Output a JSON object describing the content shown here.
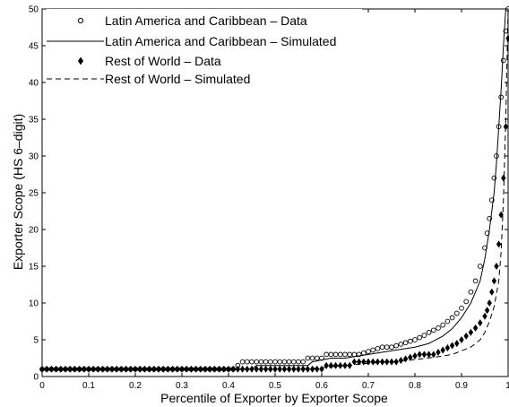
{
  "chart_data": {
    "type": "scatter",
    "xlabel": "Percentile of Exporter by Exporter Scope",
    "ylabel": "Exporter Scope (HS 6–digit)",
    "xlim": [
      0,
      1
    ],
    "ylim": [
      0,
      50
    ],
    "xticks": [
      "0",
      "0.1",
      "0.2",
      "0.3",
      "0.4",
      "0.5",
      "0.6",
      "0.7",
      "0.8",
      "0.9",
      "1"
    ],
    "yticks": [
      "0",
      "5",
      "10",
      "15",
      "20",
      "25",
      "30",
      "35",
      "40",
      "45",
      "50"
    ],
    "grid": false,
    "legend_position": "top-left",
    "series": [
      {
        "name": "Latin America and Caribbean – Data",
        "marker": "open-circle",
        "color": "#000000",
        "x": [
          0.0,
          0.01,
          0.02,
          0.03,
          0.04,
          0.05,
          0.06,
          0.07,
          0.08,
          0.09,
          0.1,
          0.11,
          0.12,
          0.13,
          0.14,
          0.15,
          0.16,
          0.17,
          0.18,
          0.19,
          0.2,
          0.21,
          0.22,
          0.23,
          0.24,
          0.25,
          0.26,
          0.27,
          0.28,
          0.29,
          0.3,
          0.31,
          0.32,
          0.33,
          0.34,
          0.35,
          0.36,
          0.37,
          0.38,
          0.39,
          0.4,
          0.41,
          0.42,
          0.43,
          0.44,
          0.45,
          0.46,
          0.47,
          0.48,
          0.49,
          0.5,
          0.51,
          0.52,
          0.53,
          0.54,
          0.55,
          0.56,
          0.57,
          0.58,
          0.59,
          0.6,
          0.61,
          0.62,
          0.63,
          0.64,
          0.65,
          0.66,
          0.67,
          0.68,
          0.69,
          0.7,
          0.71,
          0.72,
          0.73,
          0.74,
          0.75,
          0.76,
          0.77,
          0.78,
          0.79,
          0.8,
          0.81,
          0.82,
          0.83,
          0.84,
          0.85,
          0.86,
          0.87,
          0.88,
          0.89,
          0.9,
          0.91,
          0.92,
          0.93,
          0.94,
          0.95,
          0.955,
          0.96,
          0.965,
          0.97,
          0.975,
          0.98,
          0.985,
          0.99,
          0.995,
          1.0
        ],
        "y": [
          1,
          1,
          1,
          1,
          1,
          1,
          1,
          1,
          1,
          1,
          1,
          1,
          1,
          1,
          1,
          1,
          1,
          1,
          1,
          1,
          1,
          1,
          1,
          1,
          1,
          1,
          1,
          1,
          1,
          1,
          1,
          1,
          1,
          1,
          1,
          1,
          1,
          1,
          1,
          1,
          1,
          1,
          1.5,
          2,
          2,
          2,
          2,
          2,
          2,
          2,
          2,
          2,
          2,
          2,
          2,
          2,
          2,
          2.5,
          2.5,
          2.5,
          2.5,
          3,
          3,
          3,
          3,
          3,
          3,
          3,
          3,
          3.2,
          3.4,
          3.6,
          3.8,
          4,
          4,
          4,
          4.2,
          4.4,
          4.6,
          4.8,
          5,
          5.3,
          5.6,
          6,
          6.3,
          6.6,
          7,
          7.5,
          8,
          8.6,
          9.3,
          10.2,
          11.5,
          13,
          15,
          17.5,
          19.5,
          21.5,
          24,
          27,
          30,
          34,
          38,
          43,
          47,
          50
        ]
      },
      {
        "name": "Latin America and Caribbean – Simulated",
        "line": "solid",
        "color": "#000000",
        "x": [
          0.0,
          0.45,
          0.46,
          0.57,
          0.58,
          0.62,
          0.65,
          0.7,
          0.75,
          0.8,
          0.83,
          0.86,
          0.88,
          0.9,
          0.92,
          0.94,
          0.95,
          0.96,
          0.97,
          0.975,
          0.98,
          0.985,
          0.99,
          0.995,
          1.0
        ],
        "y": [
          1,
          1,
          1.5,
          1.5,
          2,
          2.5,
          2.5,
          3,
          3.5,
          4,
          4.5,
          5.5,
          6.5,
          8,
          10,
          13,
          16,
          20,
          25,
          29,
          34,
          39,
          45,
          50,
          50
        ]
      },
      {
        "name": "Rest of World – Data",
        "marker": "filled-diamond",
        "color": "#000000",
        "x": [
          0.0,
          0.01,
          0.02,
          0.03,
          0.04,
          0.05,
          0.06,
          0.07,
          0.08,
          0.09,
          0.1,
          0.11,
          0.12,
          0.13,
          0.14,
          0.15,
          0.16,
          0.17,
          0.18,
          0.19,
          0.2,
          0.21,
          0.22,
          0.23,
          0.24,
          0.25,
          0.26,
          0.27,
          0.28,
          0.29,
          0.3,
          0.31,
          0.32,
          0.33,
          0.34,
          0.35,
          0.36,
          0.37,
          0.38,
          0.39,
          0.4,
          0.41,
          0.42,
          0.43,
          0.44,
          0.45,
          0.46,
          0.47,
          0.48,
          0.49,
          0.5,
          0.51,
          0.52,
          0.53,
          0.54,
          0.55,
          0.56,
          0.57,
          0.58,
          0.59,
          0.6,
          0.61,
          0.62,
          0.63,
          0.64,
          0.65,
          0.66,
          0.67,
          0.68,
          0.69,
          0.7,
          0.71,
          0.72,
          0.73,
          0.74,
          0.75,
          0.76,
          0.77,
          0.78,
          0.79,
          0.8,
          0.81,
          0.82,
          0.83,
          0.84,
          0.85,
          0.86,
          0.87,
          0.88,
          0.89,
          0.9,
          0.91,
          0.92,
          0.93,
          0.94,
          0.95,
          0.955,
          0.96,
          0.965,
          0.97,
          0.975,
          0.98,
          0.985,
          0.99,
          0.995,
          1.0
        ],
        "y": [
          1,
          1,
          1,
          1,
          1,
          1,
          1,
          1,
          1,
          1,
          1,
          1,
          1,
          1,
          1,
          1,
          1,
          1,
          1,
          1,
          1,
          1,
          1,
          1,
          1,
          1,
          1,
          1,
          1,
          1,
          1,
          1,
          1,
          1,
          1,
          1,
          1,
          1,
          1,
          1,
          1,
          1,
          1,
          1,
          1,
          1,
          1,
          1,
          1,
          1,
          1,
          1,
          1,
          1,
          1,
          1,
          1,
          1,
          1,
          1,
          1,
          1.5,
          1.5,
          1.5,
          1.5,
          1.5,
          1.5,
          2,
          2,
          2,
          2,
          2,
          2,
          2,
          2,
          2,
          2,
          2.2,
          2.4,
          2.6,
          2.8,
          3,
          3,
          3,
          3,
          3.3,
          3.6,
          3.9,
          4.2,
          4.5,
          5,
          5.5,
          6,
          6.6,
          7.3,
          8.2,
          9,
          10,
          11.5,
          13,
          15,
          18,
          22,
          27,
          34,
          46
        ]
      },
      {
        "name": "Rest of World – Simulated",
        "line": "dashed",
        "color": "#000000",
        "x": [
          0.0,
          0.55,
          0.6,
          0.65,
          0.7,
          0.75,
          0.8,
          0.85,
          0.88,
          0.9,
          0.92,
          0.94,
          0.95,
          0.96,
          0.97,
          0.98,
          0.985,
          0.99,
          0.995,
          1.0
        ],
        "y": [
          1,
          1,
          1.2,
          1.5,
          1.8,
          2,
          2.3,
          2.7,
          3,
          3.5,
          4,
          5,
          6,
          7.5,
          9.5,
          13,
          17,
          24,
          35,
          50
        ]
      }
    ]
  }
}
